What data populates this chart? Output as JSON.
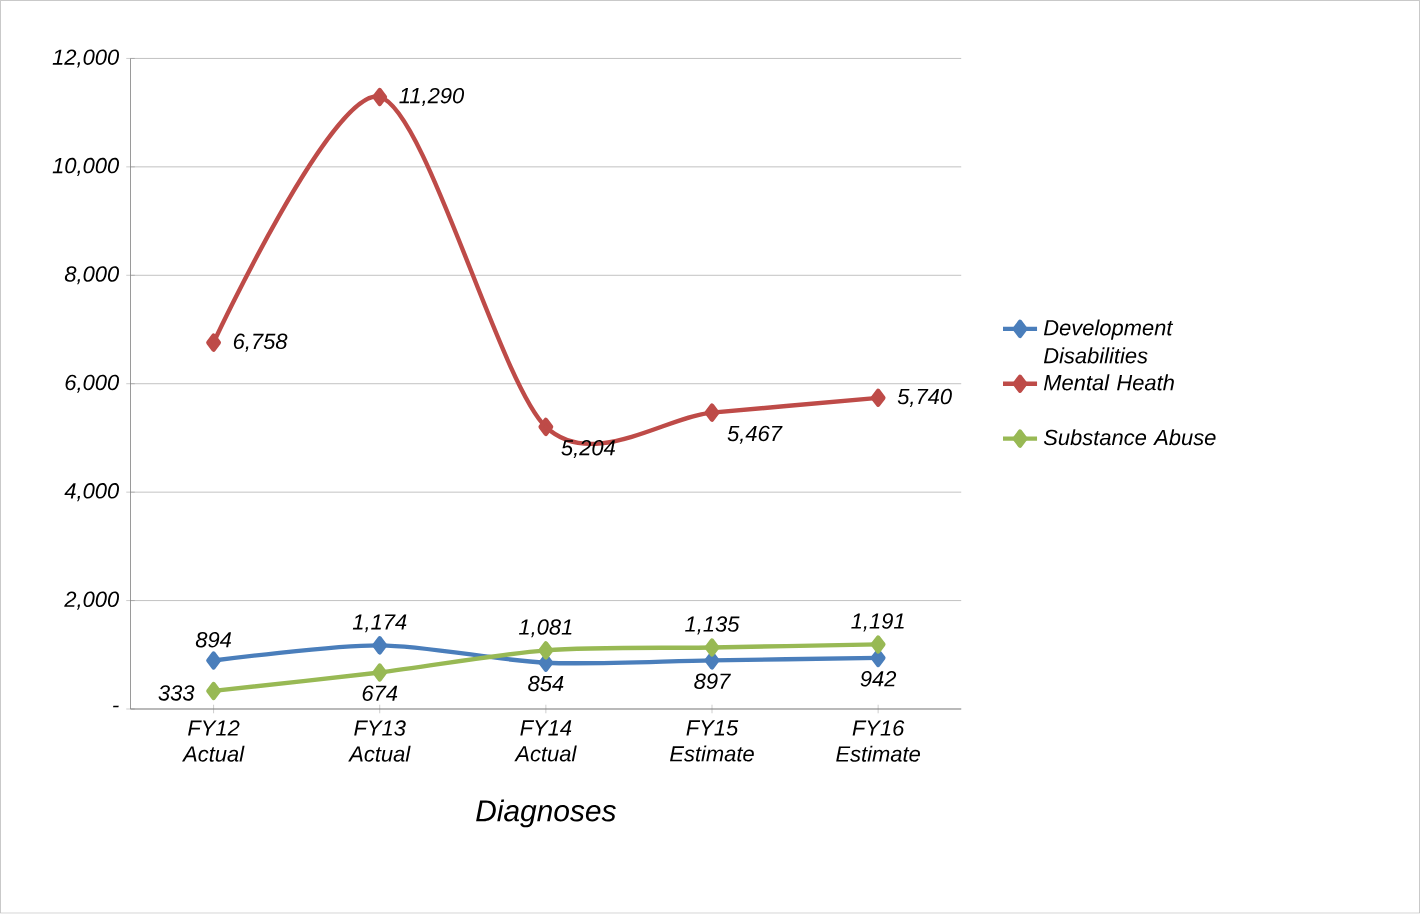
{
  "chart_data": {
    "type": "line",
    "xlabel": "Diagnoses",
    "categories": [
      "FY12 Actual",
      "FY13 Actual",
      "FY14 Actual",
      "FY15 Estimate",
      "FY16 Estimate"
    ],
    "series": [
      {
        "name": "Development Disabilities",
        "color": "#4a7ebb",
        "values": [
          894,
          1174,
          854,
          897,
          942
        ],
        "value_labels": [
          "894",
          "1,174",
          "854",
          "897",
          "942"
        ]
      },
      {
        "name": "Mental Heath",
        "color": "#be4b48",
        "values": [
          6758,
          11290,
          5204,
          5467,
          5740
        ],
        "value_labels": [
          "6,758",
          "11,290",
          "5,204",
          "5,467",
          "5,740"
        ]
      },
      {
        "name": "Substance Abuse",
        "color": "#98b954",
        "values": [
          333,
          674,
          1081,
          1135,
          1191
        ],
        "value_labels": [
          "333",
          "674",
          "1,081",
          "1,135",
          "1,191"
        ]
      }
    ],
    "ylim": [
      0,
      12000
    ],
    "yticks": [
      {
        "value": 0,
        "label": "-"
      },
      {
        "value": 2000,
        "label": "2,000"
      },
      {
        "value": 4000,
        "label": "4,000"
      },
      {
        "value": 6000,
        "label": "6,000"
      },
      {
        "value": 8000,
        "label": "8,000"
      },
      {
        "value": 10000,
        "label": "10,000"
      },
      {
        "value": 12000,
        "label": "12,000"
      }
    ],
    "grid": "y",
    "legend": "right",
    "marker": "diamond",
    "line_style": "solid"
  }
}
